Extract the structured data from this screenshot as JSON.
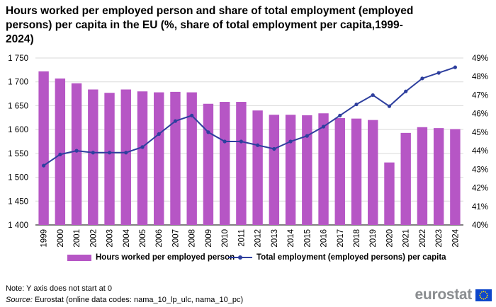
{
  "title": "Hours worked per employed person and share of total employment (employed persons) per capita in the EU (%, share of total employment per capita,1999-2024)",
  "note": "Note: Y axis does not start at 0",
  "source_label": "Source:",
  "source_text": " Eurostat (online data codes: nama_10_lp_ulc,  nama_10_pc)",
  "logo_text": "eurostat",
  "colors": {
    "bar": "#b656c5",
    "line": "#2e3f9e",
    "grid": "#d9d9d9"
  },
  "chart_data": {
    "type": "bar+line",
    "categories": [
      "1999",
      "2000",
      "2001",
      "2002",
      "2003",
      "2004",
      "2005",
      "2006",
      "2007",
      "2008",
      "2009",
      "2010",
      "2011",
      "2012",
      "2013",
      "2014",
      "2015",
      "2016",
      "2017",
      "2018",
      "2019",
      "2020",
      "2021",
      "2022",
      "2023",
      "2024"
    ],
    "left_axis": {
      "min": 1400,
      "max": 1750,
      "ticks": [
        "1 400",
        "1 450",
        "1 500",
        "1 550",
        "1 600",
        "1 650",
        "1 700",
        "1 750"
      ]
    },
    "right_axis": {
      "min": 40,
      "max": 49,
      "ticks": [
        "40%",
        "41%",
        "42%",
        "43%",
        "44%",
        "45%",
        "46%",
        "47%",
        "48%",
        "49%"
      ]
    },
    "series": [
      {
        "name": "Hours worked per employed person",
        "type": "bar",
        "axis": "left",
        "values": [
          1722,
          1707,
          1697,
          1684,
          1677,
          1684,
          1680,
          1678,
          1679,
          1678,
          1654,
          1658,
          1658,
          1640,
          1631,
          1631,
          1630,
          1634,
          1624,
          1623,
          1620,
          1531,
          1593,
          1605,
          1603,
          1601
        ]
      },
      {
        "name": "Total employment (employed persons) per capita",
        "type": "line",
        "axis": "right",
        "values": [
          43.2,
          43.8,
          44.0,
          43.9,
          43.9,
          43.9,
          44.2,
          44.9,
          45.6,
          45.9,
          45.0,
          44.5,
          44.5,
          44.3,
          44.1,
          44.5,
          44.8,
          45.3,
          45.9,
          46.5,
          47.0,
          46.4,
          47.2,
          47.9,
          48.2,
          48.5
        ]
      }
    ],
    "grid": true,
    "legend_position": "bottom"
  }
}
